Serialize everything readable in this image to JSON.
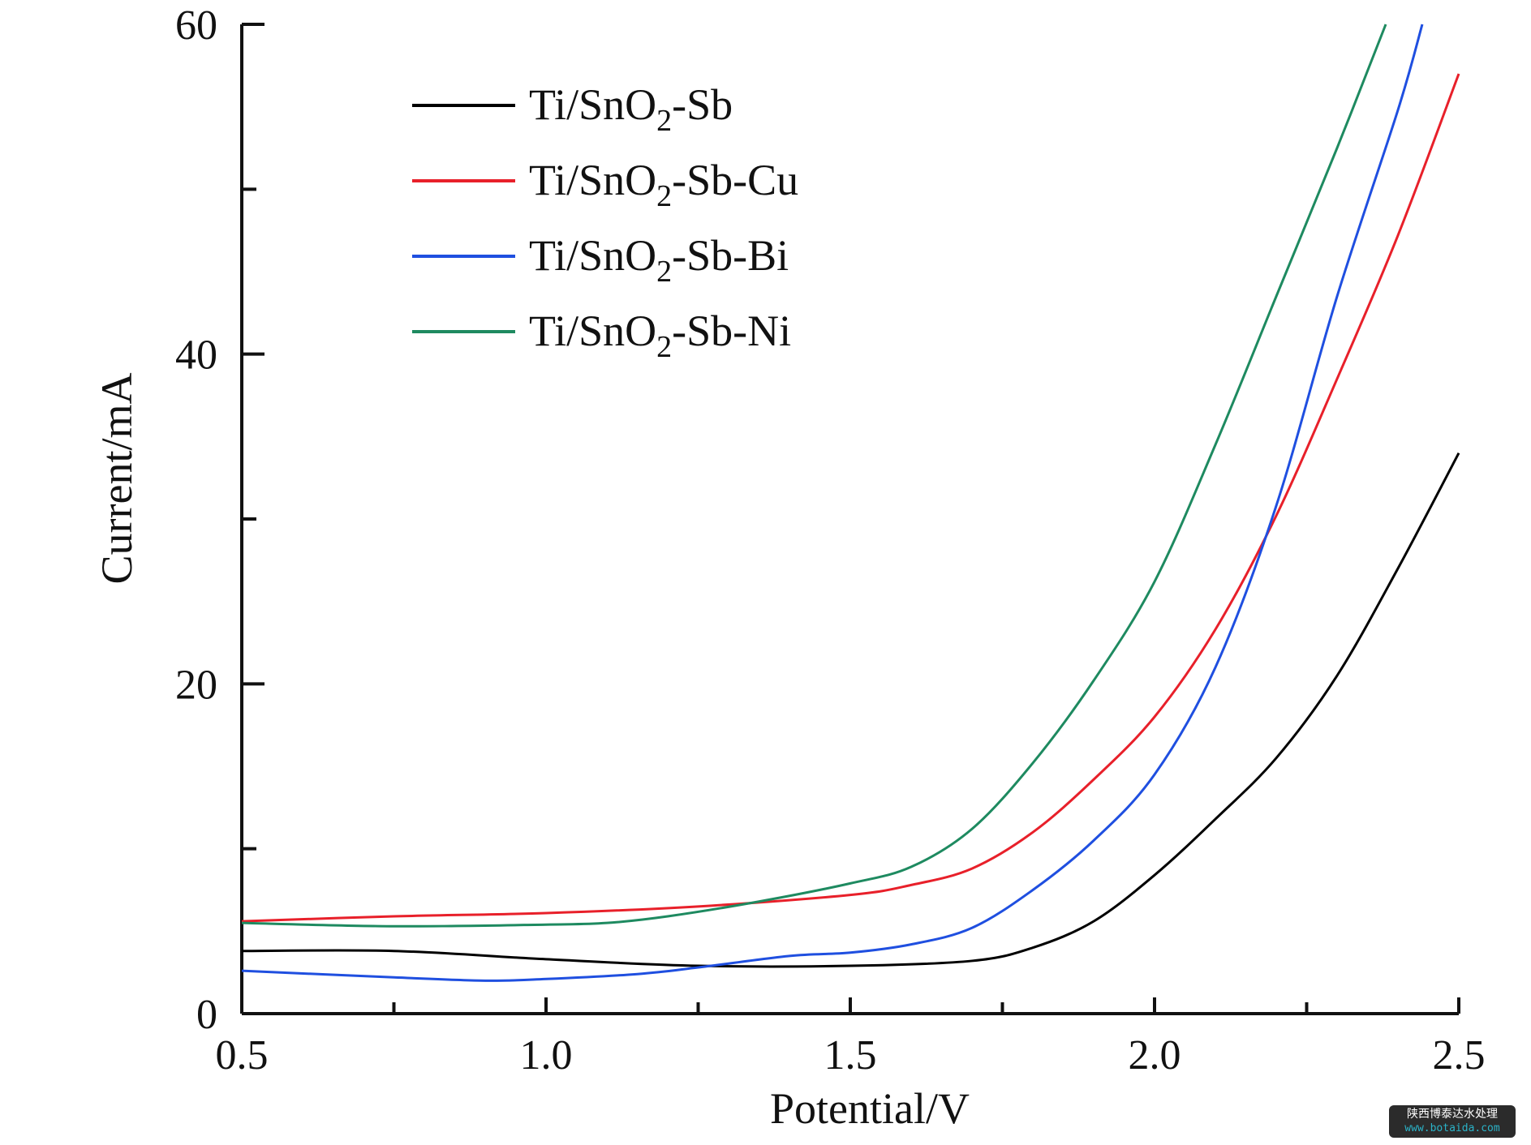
{
  "chart_data": {
    "type": "line",
    "title": "",
    "xlabel": "Potential/V",
    "ylabel": "Current/mA",
    "xlim": [
      0.5,
      2.5
    ],
    "ylim": [
      0,
      60
    ],
    "x_ticks": [
      "0.5",
      "1.0",
      "1.5",
      "2.0",
      "2.5"
    ],
    "y_ticks": [
      "0",
      "20",
      "40",
      "60"
    ],
    "grid": false,
    "legend_position": "top-left",
    "series": [
      {
        "name": "Ti/SnO2-Sb",
        "legend": {
          "base": "Ti/SnO",
          "sub": "2",
          "suffix": "-Sb"
        },
        "color": "#000000",
        "x": [
          0.5,
          0.75,
          1.0,
          1.25,
          1.5,
          1.7,
          1.8,
          1.9,
          2.0,
          2.1,
          2.2,
          2.3,
          2.4,
          2.5
        ],
        "y": [
          3.8,
          3.8,
          3.3,
          2.9,
          2.9,
          3.2,
          4.0,
          5.6,
          8.4,
          11.8,
          15.5,
          20.5,
          27.0,
          34.0
        ]
      },
      {
        "name": "Ti/SnO2-Sb-Cu",
        "legend": {
          "base": "Ti/SnO",
          "sub": "2",
          "suffix": "-Sb-Cu"
        },
        "color": "#e8202a",
        "x": [
          0.5,
          0.75,
          1.0,
          1.25,
          1.5,
          1.6,
          1.7,
          1.8,
          1.9,
          2.0,
          2.1,
          2.2,
          2.3,
          2.4,
          2.5
        ],
        "y": [
          5.6,
          5.9,
          6.1,
          6.5,
          7.2,
          7.8,
          8.8,
          11.0,
          14.2,
          18.0,
          23.3,
          30.2,
          38.5,
          47.2,
          57.0
        ]
      },
      {
        "name": "Ti/SnO2-Sb-Bi",
        "legend": {
          "base": "Ti/SnO",
          "sub": "2",
          "suffix": "-Sb-Bi"
        },
        "color": "#1f4fe0",
        "x": [
          0.5,
          0.75,
          0.9,
          1.0,
          1.15,
          1.25,
          1.4,
          1.5,
          1.6,
          1.7,
          1.8,
          1.9,
          2.0,
          2.1,
          2.2,
          2.3,
          2.4,
          2.44
        ],
        "y": [
          2.6,
          2.2,
          2.0,
          2.1,
          2.4,
          2.8,
          3.5,
          3.7,
          4.2,
          5.2,
          7.5,
          10.5,
          14.5,
          21.0,
          30.8,
          43.5,
          54.8,
          60.0
        ]
      },
      {
        "name": "Ti/SnO2-Sb-Ni",
        "legend": {
          "base": "Ti/SnO",
          "sub": "2",
          "suffix": "-Sb-Ni"
        },
        "color": "#1e8a60",
        "x": [
          0.5,
          0.75,
          1.0,
          1.1,
          1.2,
          1.35,
          1.5,
          1.6,
          1.7,
          1.8,
          1.9,
          2.0,
          2.1,
          2.2,
          2.3,
          2.38
        ],
        "y": [
          5.5,
          5.3,
          5.4,
          5.5,
          5.9,
          6.8,
          7.9,
          8.9,
          11.2,
          15.2,
          20.2,
          26.2,
          34.5,
          43.5,
          52.5,
          60.0
        ]
      }
    ]
  },
  "watermark": {
    "line1": "陕西博泰达水处理",
    "line2": "www.botaida.com"
  }
}
